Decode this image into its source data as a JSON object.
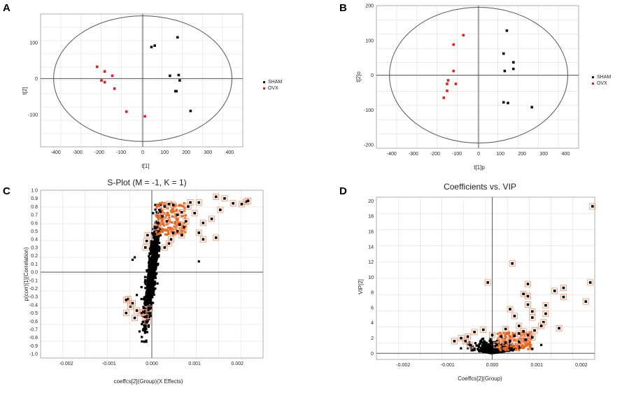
{
  "colors": {
    "sham": "#111111",
    "ovx": "#e41a1c",
    "orange": "#e8671f",
    "box": "#f4a582",
    "bg_black": "#000000"
  },
  "chart_data": [
    {
      "panel": "A",
      "type": "scatter",
      "title": "",
      "xlabel": "t[1]",
      "ylabel": "t[2]",
      "xlim": [
        -470,
        460
      ],
      "ylim": [
        -190,
        180
      ],
      "xticks": [
        -400,
        -300,
        -200,
        -100,
        0,
        100,
        200,
        300,
        400
      ],
      "yticks": [
        -100,
        0,
        100
      ],
      "ellipse": {
        "rx": 410,
        "ry": 175
      },
      "legend": [
        "SHAM",
        "OVX"
      ],
      "series": [
        {
          "name": "SHAM",
          "points": [
            [
              40,
              88
            ],
            [
              55,
              92
            ],
            [
              160,
              115
            ],
            [
              125,
              8
            ],
            [
              165,
              10
            ],
            [
              170,
              -5
            ],
            [
              150,
              -35
            ],
            [
              155,
              -35
            ],
            [
              220,
              -90
            ]
          ]
        },
        {
          "name": "OVX",
          "points": [
            [
              -210,
              33
            ],
            [
              -175,
              20
            ],
            [
              -190,
              -5
            ],
            [
              -175,
              -10
            ],
            [
              -140,
              8
            ],
            [
              -130,
              -28
            ],
            [
              -75,
              -92
            ],
            [
              10,
              -105
            ]
          ]
        }
      ]
    },
    {
      "panel": "B",
      "type": "scatter",
      "title": "",
      "xlabel": "t[1]p",
      "ylabel": "t[2]o",
      "xlim": [
        -470,
        460
      ],
      "ylim": [
        -210,
        200
      ],
      "xticks": [
        -400,
        -300,
        -200,
        -100,
        0,
        100,
        200,
        300,
        400
      ],
      "yticks": [
        -200,
        -100,
        0,
        100,
        200
      ],
      "ellipse": {
        "rx": 410,
        "ry": 195
      },
      "legend": [
        "SHAM",
        "OVX"
      ],
      "series": [
        {
          "name": "SHAM",
          "points": [
            [
              130,
              128
            ],
            [
              115,
              62
            ],
            [
              160,
              37
            ],
            [
              160,
              18
            ],
            [
              120,
              12
            ],
            [
              115,
              -78
            ],
            [
              135,
              -80
            ],
            [
              245,
              -92
            ]
          ]
        },
        {
          "name": "OVX",
          "points": [
            [
              -70,
              115
            ],
            [
              -115,
              88
            ],
            [
              -115,
              12
            ],
            [
              -105,
              -25
            ],
            [
              -140,
              -15
            ],
            [
              -145,
              -25
            ],
            [
              -145,
              -45
            ],
            [
              -160,
              -65
            ]
          ]
        }
      ]
    },
    {
      "panel": "C",
      "type": "scatter",
      "title": "S-Plot (M = -1, K = 1)",
      "xlabel": "coeffcs[2](Group)(X Effects)",
      "ylabel": "p(corr)[1](Correlation)",
      "xlim": [
        -0.0026,
        0.0026
      ],
      "ylim": [
        -1.05,
        1.0
      ],
      "xticks": [
        -0.002,
        -0.001,
        0.0,
        0.001,
        0.002
      ],
      "xtick_labels": [
        "-0.002",
        "-0.001",
        "0.000",
        "0.001",
        "0.002"
      ],
      "yticks": [
        -1.0,
        -0.9,
        -0.8,
        -0.7,
        -0.6,
        -0.5,
        -0.4,
        -0.3,
        -0.2,
        -0.1,
        0.0,
        0.1,
        0.2,
        0.3,
        0.4,
        0.5,
        0.6,
        0.7,
        0.8,
        0.9,
        1.0
      ],
      "ytick_labels": [
        "-1.0",
        "-0.9",
        "-0.8",
        "-0.7",
        "-0.6",
        "-0.5",
        "-0.4",
        "-0.3",
        "-0.2",
        "-0.1",
        "0.0",
        "0.1",
        "0.2",
        "0.3",
        "0.4",
        "0.5",
        "0.6",
        "0.7",
        "0.8",
        "0.9",
        "1.0"
      ],
      "highlighted": [
        [
          0.0022,
          0.86
        ],
        [
          0.00225,
          0.87
        ],
        [
          0.0021,
          0.83
        ],
        [
          0.0019,
          0.84
        ],
        [
          0.0015,
          0.92
        ],
        [
          0.0017,
          0.9
        ],
        [
          0.0016,
          0.76
        ],
        [
          0.0014,
          0.65
        ],
        [
          0.0012,
          0.6
        ],
        [
          0.0011,
          0.85
        ],
        [
          0.0009,
          0.85
        ],
        [
          0.00085,
          0.8
        ],
        [
          0.0007,
          0.73
        ],
        [
          0.0008,
          0.62
        ],
        [
          0.00075,
          0.55
        ],
        [
          0.0006,
          0.5
        ],
        [
          0.0005,
          0.48
        ],
        [
          0.0007,
          0.45
        ],
        [
          0.001,
          0.72
        ],
        [
          0.0011,
          0.48
        ],
        [
          0.0015,
          0.42
        ],
        [
          0.0012,
          0.4
        ],
        [
          0.0005,
          0.82
        ],
        [
          0.0004,
          0.83
        ],
        [
          0.0003,
          0.8
        ],
        [
          0.0002,
          0.74
        ],
        [
          0.00025,
          0.68
        ],
        [
          0.0001,
          0.55
        ],
        [
          0.00015,
          0.6
        ],
        [
          0.00035,
          0.62
        ],
        [
          0.0004,
          0.35
        ],
        [
          0.0003,
          0.3
        ],
        [
          0.00045,
          0.4
        ],
        [
          0.0006,
          0.7
        ],
        [
          0.00065,
          0.58
        ],
        [
          -0.0001,
          0.45
        ],
        [
          -0.00012,
          0.38
        ],
        [
          -0.00015,
          0.3
        ],
        [
          -0.00055,
          -0.33
        ],
        [
          -0.0006,
          -0.34
        ],
        [
          -0.0005,
          -0.42
        ],
        [
          -0.00045,
          -0.38
        ],
        [
          -0.00035,
          -0.47
        ],
        [
          -0.00025,
          -0.5
        ],
        [
          -0.0002,
          -0.49
        ],
        [
          -0.0006,
          -0.5
        ],
        [
          -0.0004,
          -0.56
        ],
        [
          -0.00015,
          -0.55
        ],
        [
          -0.0001,
          -0.6
        ],
        [
          -5e-05,
          -0.45
        ]
      ],
      "outliers": [
        [
          -0.0004,
          0.18
        ],
        [
          -0.00045,
          0.15
        ],
        [
          0.0011,
          0.13
        ],
        [
          -0.00035,
          -0.28
        ]
      ]
    },
    {
      "panel": "D",
      "type": "scatter",
      "title": "Coefficients vs. VIP",
      "xlabel": "Coeffcs[2](Group)",
      "ylabel": "VIP[2]",
      "xlim": [
        -0.0026,
        0.0023
      ],
      "ylim": [
        -0.8,
        20.5
      ],
      "xticks": [
        -0.002,
        -0.001,
        0.0,
        0.001,
        0.002
      ],
      "xtick_labels": [
        "-0.002",
        "-0.001",
        "0.000",
        "0.001",
        "0.002"
      ],
      "yticks": [
        0,
        2,
        4,
        6,
        8,
        10,
        12,
        14,
        16,
        18,
        20
      ],
      "highlighted": [
        [
          0.00225,
          19.3
        ],
        [
          0.0022,
          9.3
        ],
        [
          0.0021,
          6.8
        ],
        [
          0.0016,
          8.6
        ],
        [
          0.0016,
          7.4
        ],
        [
          0.0014,
          8.2
        ],
        [
          0.0012,
          6.3
        ],
        [
          0.0012,
          5.2
        ],
        [
          0.00115,
          4.1
        ],
        [
          0.0015,
          3.3
        ],
        [
          0.0011,
          3.6
        ],
        [
          0.0009,
          4.7
        ],
        [
          0.0009,
          5.5
        ],
        [
          0.0008,
          6.4
        ],
        [
          0.0008,
          7.5
        ],
        [
          0.0007,
          7.8
        ],
        [
          0.0008,
          9.1
        ],
        [
          0.00045,
          11.8
        ],
        [
          -0.0001,
          9.3
        ],
        [
          0.0005,
          4.9
        ],
        [
          0.0004,
          5.8
        ],
        [
          0.0006,
          3.6
        ],
        [
          0.0007,
          2.9
        ],
        [
          0.0008,
          2.4
        ],
        [
          0.0009,
          2.1
        ],
        [
          0.00075,
          1.8
        ],
        [
          0.0006,
          1.5
        ],
        [
          0.0005,
          2.3
        ],
        [
          0.0004,
          1.6
        ],
        [
          0.0003,
          1.4
        ],
        [
          0.0002,
          2.2
        ],
        [
          0.0001,
          1.1
        ],
        [
          -0.0002,
          3.1
        ],
        [
          -0.0004,
          2.8
        ],
        [
          -0.0006,
          1.6
        ],
        [
          -0.0005,
          1.1
        ],
        [
          -0.00055,
          2.2
        ],
        [
          -0.0007,
          2.0
        ],
        [
          -0.00085,
          1.6
        ],
        [
          0.0,
          2.4
        ],
        [
          0.0003,
          3.2
        ],
        [
          0.0006,
          2.6
        ],
        [
          0.00095,
          3.0
        ]
      ],
      "outliers": [
        [
          0.0009,
          0.6
        ],
        [
          0.0011,
          1.1
        ]
      ]
    }
  ]
}
